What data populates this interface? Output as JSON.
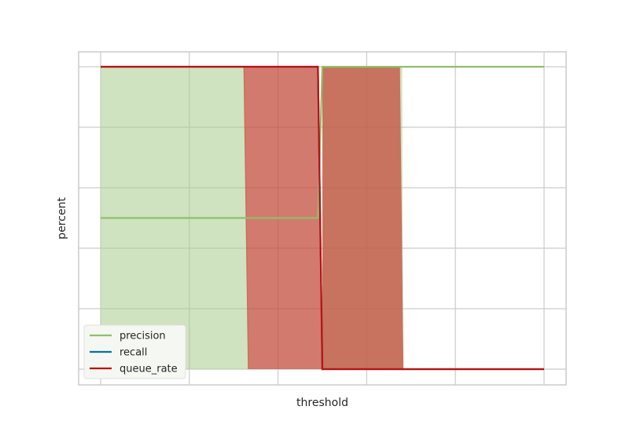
{
  "chart_data": {
    "type": "line",
    "xlabel": "threshold",
    "ylabel": "percent",
    "grid": true,
    "legend_position": "lower-left",
    "xlim": [
      -0.05,
      1.05
    ],
    "ylim": [
      -0.05,
      1.05
    ],
    "x_ticks": [
      0,
      0.2,
      0.4,
      0.6,
      0.8,
      1.0
    ],
    "y_ticks": [
      0,
      0.2,
      0.4,
      0.6,
      0.8,
      1.0
    ],
    "series": [
      {
        "name": "precision",
        "color": "#8fbf6a",
        "x": [
          0,
          0.49,
          0.5,
          1.0
        ],
        "y": [
          0.5,
          0.5,
          1.0,
          1.0
        ]
      },
      {
        "name": "recall",
        "color": "#0072b2",
        "x": [
          0,
          0.49,
          0.5,
          1.0
        ],
        "y": [
          1.0,
          1.0,
          0.0,
          0.0
        ]
      },
      {
        "name": "queue_rate",
        "color": "#c0100f",
        "x": [
          0,
          0.49,
          0.5,
          1.0
        ],
        "y": [
          1.0,
          1.0,
          0.0,
          0.0
        ]
      }
    ],
    "bands": [
      {
        "series": "precision",
        "color": "#a9cc8c",
        "opacity": 0.55,
        "upper": [
          [
            0,
            1
          ],
          [
            0.325,
            1
          ],
          [
            0.335,
            0
          ],
          [
            0,
            0
          ]
        ],
        "lower": [
          [
            0.5,
            1
          ],
          [
            0.68,
            1
          ],
          [
            0.682,
            0
          ],
          [
            0.5,
            0
          ]
        ]
      },
      {
        "series": "queue_rate",
        "color": "#c44e3f",
        "opacity": 0.75,
        "region1": [
          [
            0.322,
            1
          ],
          [
            0.49,
            1
          ],
          [
            0.5,
            0
          ],
          [
            0.332,
            0
          ]
        ],
        "region2": [
          [
            0.5,
            1
          ],
          [
            0.675,
            1
          ],
          [
            0.683,
            0
          ],
          [
            0.5,
            0
          ]
        ]
      }
    ]
  }
}
